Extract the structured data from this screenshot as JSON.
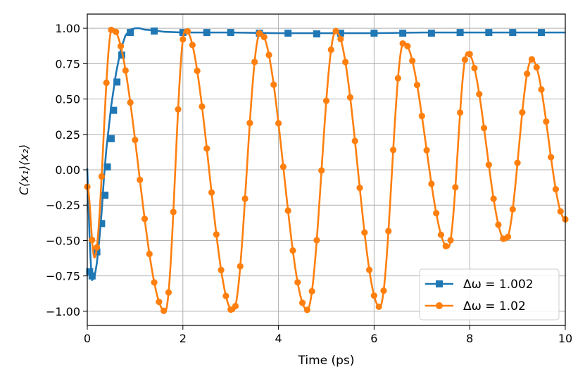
{
  "chart_data": {
    "type": "line",
    "xlabel": "Time (ps)",
    "ylabel": "C⟨x₁⟩⟨x₂⟩",
    "xlim": [
      0,
      10
    ],
    "ylim": [
      -1.1,
      1.1
    ],
    "xticks": [
      0,
      2,
      4,
      6,
      8,
      10
    ],
    "xtick_labels": [
      "0",
      "2",
      "4",
      "6",
      "8",
      "10"
    ],
    "yticks": [
      1.0,
      0.75,
      0.5,
      0.25,
      0.0,
      -0.25,
      -0.5,
      -0.75,
      -1.0
    ],
    "ytick_labels": [
      "1.00",
      "0.75",
      "0.50",
      "0.25",
      "0.00",
      "−0.25",
      "−0.50",
      "−0.75",
      "−1.00"
    ],
    "grid": true,
    "legend_position": "lower-right",
    "series": [
      {
        "name": "Δω = 1.002",
        "legend_label": "Δω = 1.002",
        "color": "#1f77b4",
        "marker": "square",
        "curve_x": [
          0,
          0.02,
          0.05,
          0.08,
          0.1,
          0.15,
          0.2,
          0.25,
          0.3,
          0.35,
          0.4,
          0.5,
          0.6,
          0.7,
          0.8,
          0.9,
          1.0,
          1.1,
          1.2,
          1.4,
          1.6,
          2.0,
          3.0,
          4.0,
          5.0,
          6.0,
          7.0,
          8.0,
          9.0,
          10.0
        ],
        "curve_y": [
          0.01,
          -0.2,
          -0.5,
          -0.7,
          -0.78,
          -0.76,
          -0.66,
          -0.5,
          -0.3,
          -0.05,
          0.15,
          0.45,
          0.68,
          0.85,
          0.95,
          0.99,
          1.0,
          1.0,
          0.99,
          0.985,
          0.975,
          0.97,
          0.97,
          0.965,
          0.965,
          0.965,
          0.97,
          0.97,
          0.97,
          0.97
        ],
        "marker_x": [
          0.05,
          0.1,
          0.2,
          0.3,
          0.37,
          0.42,
          0.5,
          0.55,
          0.62,
          0.72,
          0.9,
          1.4,
          2.0,
          2.5,
          3.0,
          3.6,
          4.2,
          4.8,
          5.3,
          6.0,
          6.6,
          7.2,
          7.8,
          8.4,
          8.9,
          9.5
        ],
        "marker_y": [
          -0.72,
          -0.75,
          -0.58,
          -0.38,
          -0.18,
          0.02,
          0.22,
          0.42,
          0.62,
          0.81,
          0.97,
          0.98,
          0.97,
          0.97,
          0.97,
          0.965,
          0.965,
          0.96,
          0.965,
          0.965,
          0.965,
          0.965,
          0.97,
          0.97,
          0.97,
          0.97
        ]
      },
      {
        "name": "Δω = 1.02",
        "legend_label": "Δω = 1.02",
        "color": "#ff7f0e",
        "marker": "circle",
        "peaks": [
          [
            0.0,
            -0.12
          ],
          [
            0.15,
            -0.62
          ],
          [
            0.52,
            1.0
          ],
          [
            1.63,
            -1.0
          ],
          [
            2.05,
            0.99
          ],
          [
            3.05,
            -1.0
          ],
          [
            3.62,
            0.97
          ],
          [
            4.6,
            -0.99
          ],
          [
            5.2,
            0.98
          ],
          [
            6.12,
            -0.97
          ],
          [
            6.62,
            0.9
          ],
          [
            7.55,
            -0.55
          ],
          [
            7.95,
            0.83
          ],
          [
            8.75,
            -0.5
          ],
          [
            9.3,
            0.78
          ],
          [
            10.0,
            -0.35
          ]
        ]
      }
    ]
  }
}
